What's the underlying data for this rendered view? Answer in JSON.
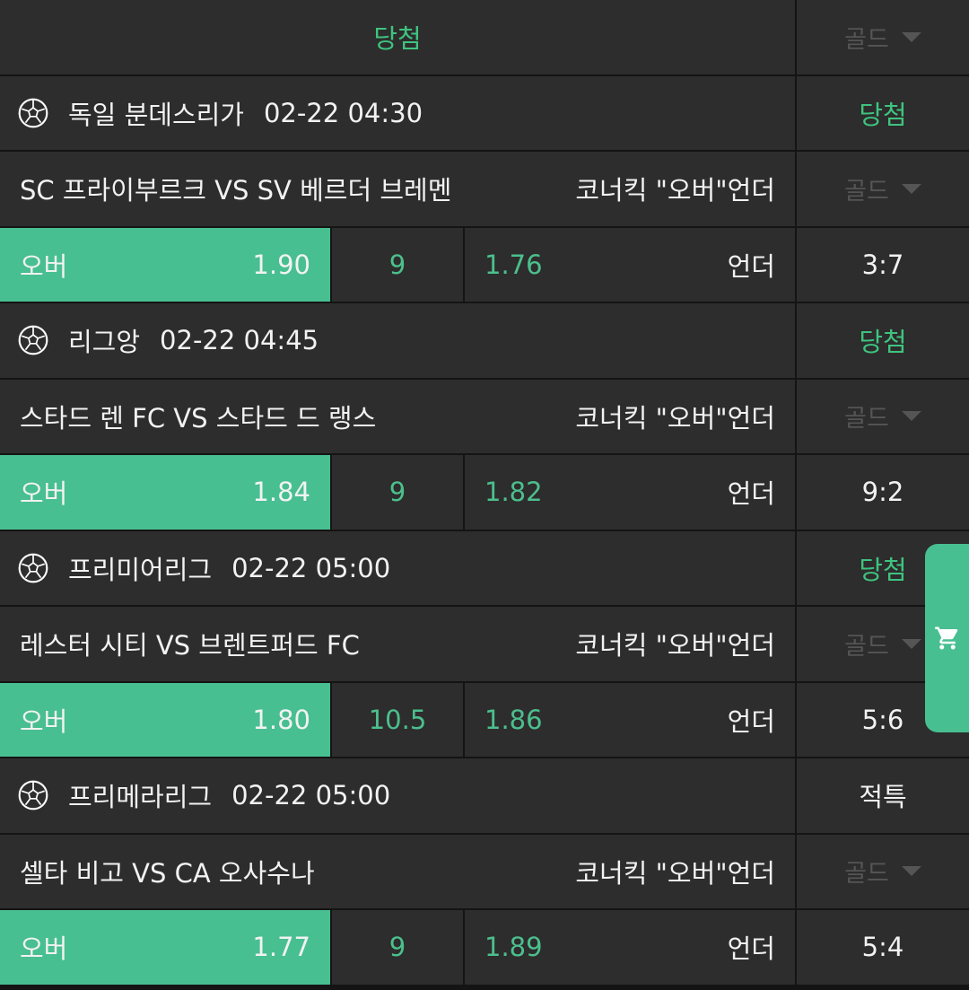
{
  "header": {
    "title": "당첨",
    "gold_label": "골드"
  },
  "colors": {
    "accent": "#48bf91",
    "win_text": "#3ec47f",
    "background": "#2d2d2d",
    "divider": "#141414"
  },
  "games": [
    {
      "league": "독일 분데스리가",
      "time": "02-22 04:30",
      "status": "당첨",
      "status_win": true,
      "match": "SC 프라이부르크 VS SV 베르더 브레멘",
      "market": "코너킥 \"오버\"언더",
      "gold": "골드",
      "over_label": "오버",
      "over_odds": "1.90",
      "line": "9",
      "under_odds": "1.76",
      "under_label": "언더",
      "score": "3:7"
    },
    {
      "league": "리그앙",
      "time": "02-22 04:45",
      "status": "당첨",
      "status_win": true,
      "match": "스타드 렌 FC VS 스타드 드 랭스",
      "market": "코너킥 \"오버\"언더",
      "gold": "골드",
      "over_label": "오버",
      "over_odds": "1.84",
      "line": "9",
      "under_odds": "1.82",
      "under_label": "언더",
      "score": "9:2"
    },
    {
      "league": "프리미어리그",
      "time": "02-22 05:00",
      "status": "당첨",
      "status_win": true,
      "match": "레스터 시티 VS 브렌트퍼드 FC",
      "market": "코너킥 \"오버\"언더",
      "gold": "골드",
      "over_label": "오버",
      "over_odds": "1.80",
      "line": "10.5",
      "under_odds": "1.86",
      "under_label": "언더",
      "score": "5:6"
    },
    {
      "league": "프리메라리그",
      "time": "02-22 05:00",
      "status": "적특",
      "status_win": false,
      "match": "셀타 비고 VS CA 오사수나",
      "market": "코너킥 \"오버\"언더",
      "gold": "골드",
      "over_label": "오버",
      "over_odds": "1.77",
      "line": "9",
      "under_odds": "1.89",
      "under_label": "언더",
      "score": "5:4"
    }
  ],
  "cart": {
    "icon": "shopping-cart-icon"
  }
}
